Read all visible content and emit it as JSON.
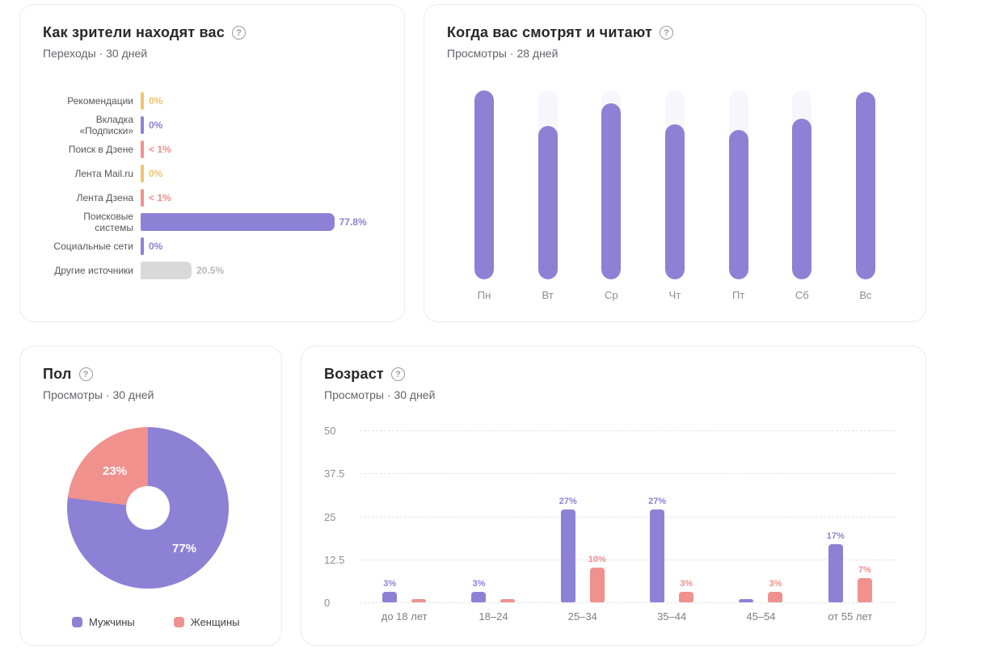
{
  "icons": {
    "help": "?"
  },
  "colors": {
    "purple": "#8d81d6",
    "pink": "#f0918e",
    "yellow": "#f2c469",
    "gray_bar": "#d9d9d9",
    "gray_label": "#b7b7bb",
    "track": "#f7f6fc"
  },
  "chart_data": [
    {
      "id": "traffic-sources",
      "type": "bar",
      "orientation": "horizontal",
      "title": "Как зрители находят вас",
      "subtitle": "Переходы · 30 дней",
      "xlim": [
        0,
        100
      ],
      "categories": [
        "Рекомендации",
        "Вкладка «Подписки»",
        "Поиск в Дзене",
        "Лента Mail.ru",
        "Лента Дзена",
        "Поисковые системы",
        "Социальные сети",
        "Другие источники"
      ],
      "values": [
        0,
        0,
        0.5,
        0,
        0.5,
        77.8,
        0,
        20.5
      ],
      "value_labels": [
        "0%",
        "0%",
        "< 1%",
        "0%",
        "< 1%",
        "77.8%",
        "0%",
        "20.5%"
      ],
      "bar_colors": [
        "yellow",
        "purple",
        "pink",
        "yellow",
        "pink",
        "purple",
        "purple",
        "gray_bar"
      ]
    },
    {
      "id": "weekday-views",
      "type": "bar",
      "title": "Когда вас смотрят и читают",
      "subtitle": "Просмотры · 28 дней",
      "categories": [
        "Пн",
        "Вт",
        "Ср",
        "Чт",
        "Пт",
        "Сб",
        "Вс"
      ],
      "values": [
        100,
        81,
        93,
        82,
        79,
        85,
        99
      ],
      "ylim": [
        0,
        100
      ],
      "note": "relative bar heights, no y-axis labels shown",
      "bar_color": "purple"
    },
    {
      "id": "gender-views",
      "type": "pie",
      "title": "Пол",
      "subtitle": "Просмотры · 30 дней",
      "slices": [
        {
          "label": "Мужчины",
          "value": 77,
          "value_label": "77%",
          "color": "purple"
        },
        {
          "label": "Женщины",
          "value": 23,
          "value_label": "23%",
          "color": "pink"
        }
      ],
      "legend_position": "bottom"
    },
    {
      "id": "age-views",
      "type": "bar",
      "title": "Возраст",
      "subtitle": "Просмотры · 30 дней",
      "categories": [
        "до 18 лет",
        "18–24",
        "25–34",
        "35–44",
        "45–54",
        "от 55 лет"
      ],
      "series": [
        {
          "name": "Мужчины",
          "color": "purple",
          "values": [
            3,
            3,
            27,
            27,
            1,
            17
          ],
          "value_labels": [
            "3%",
            "3%",
            "27%",
            "27%",
            "",
            "17%"
          ]
        },
        {
          "name": "Женщины",
          "color": "pink",
          "values": [
            1,
            1,
            10,
            3,
            3,
            7
          ],
          "value_labels": [
            "",
            "",
            "10%",
            "3%",
            "3%",
            "7%"
          ]
        }
      ],
      "yticks": [
        "50",
        "37.5",
        "25",
        "12.5",
        "0"
      ],
      "ylim": [
        0,
        50
      ],
      "grid": "dashed horizontal"
    }
  ]
}
